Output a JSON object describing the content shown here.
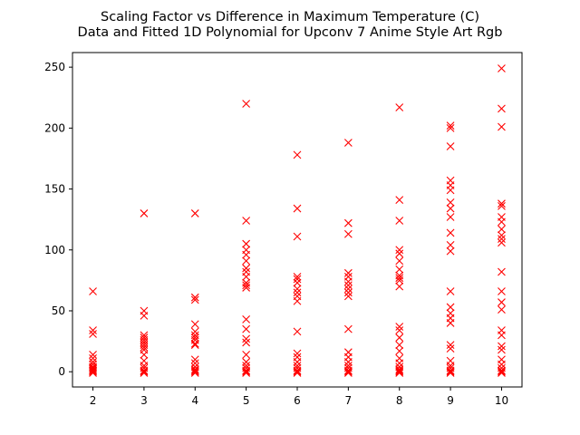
{
  "chart_data": {
    "type": "scatter",
    "title_line1": "Scaling Factor vs Difference in Maximum Temperature (C)",
    "title_line2": "Data and Fitted 1D Polynomial for Upconv 7 Anime Style Art Rgb",
    "xlabel": "",
    "ylabel": "",
    "xlim": [
      1.6,
      10.4
    ],
    "ylim": [
      -12.5,
      262
    ],
    "xticks": [
      2,
      3,
      4,
      5,
      6,
      7,
      8,
      9,
      10
    ],
    "yticks": [
      0,
      50,
      100,
      150,
      200,
      250
    ],
    "marker": "x",
    "marker_color": "#ff0000",
    "grid": false,
    "series": [
      {
        "points": [
          [
            2,
            66
          ],
          [
            2,
            34
          ],
          [
            2,
            31
          ],
          [
            2,
            14
          ],
          [
            2,
            11
          ],
          [
            2,
            8
          ],
          [
            2,
            6
          ],
          [
            2,
            4
          ],
          [
            2,
            3
          ],
          [
            2,
            2
          ],
          [
            2,
            1
          ],
          [
            2,
            0
          ],
          [
            2,
            -1
          ],
          [
            3,
            130
          ],
          [
            3,
            50
          ],
          [
            3,
            46
          ],
          [
            3,
            30
          ],
          [
            3,
            28
          ],
          [
            3,
            26
          ],
          [
            3,
            24
          ],
          [
            3,
            22
          ],
          [
            3,
            20
          ],
          [
            3,
            18
          ],
          [
            3,
            14
          ],
          [
            3,
            9
          ],
          [
            3,
            5
          ],
          [
            3,
            3
          ],
          [
            3,
            1
          ],
          [
            3,
            0
          ],
          [
            3,
            -1
          ],
          [
            4,
            130
          ],
          [
            4,
            61
          ],
          [
            4,
            59
          ],
          [
            4,
            39
          ],
          [
            4,
            33
          ],
          [
            4,
            30
          ],
          [
            4,
            28
          ],
          [
            4,
            26
          ],
          [
            4,
            23
          ],
          [
            4,
            22
          ],
          [
            4,
            10
          ],
          [
            4,
            7
          ],
          [
            4,
            4
          ],
          [
            4,
            2
          ],
          [
            4,
            1
          ],
          [
            4,
            0
          ],
          [
            4,
            -1
          ],
          [
            5,
            220
          ],
          [
            5,
            124
          ],
          [
            5,
            105
          ],
          [
            5,
            100
          ],
          [
            5,
            96
          ],
          [
            5,
            91
          ],
          [
            5,
            85
          ],
          [
            5,
            82
          ],
          [
            5,
            78
          ],
          [
            5,
            73
          ],
          [
            5,
            71
          ],
          [
            5,
            69
          ],
          [
            5,
            43
          ],
          [
            5,
            35
          ],
          [
            5,
            27
          ],
          [
            5,
            24
          ],
          [
            5,
            14
          ],
          [
            5,
            8
          ],
          [
            5,
            5
          ],
          [
            5,
            3
          ],
          [
            5,
            1
          ],
          [
            5,
            0
          ],
          [
            5,
            -1
          ],
          [
            6,
            178
          ],
          [
            6,
            134
          ],
          [
            6,
            111
          ],
          [
            6,
            78
          ],
          [
            6,
            76
          ],
          [
            6,
            73
          ],
          [
            6,
            68
          ],
          [
            6,
            65
          ],
          [
            6,
            62
          ],
          [
            6,
            58
          ],
          [
            6,
            33
          ],
          [
            6,
            15
          ],
          [
            6,
            12
          ],
          [
            6,
            8
          ],
          [
            6,
            5
          ],
          [
            6,
            3
          ],
          [
            6,
            1
          ],
          [
            6,
            0
          ],
          [
            6,
            -1
          ],
          [
            7,
            188
          ],
          [
            7,
            122
          ],
          [
            7,
            113
          ],
          [
            7,
            81
          ],
          [
            7,
            78
          ],
          [
            7,
            74
          ],
          [
            7,
            71
          ],
          [
            7,
            68
          ],
          [
            7,
            65
          ],
          [
            7,
            62
          ],
          [
            7,
            35
          ],
          [
            7,
            16
          ],
          [
            7,
            12
          ],
          [
            7,
            8
          ],
          [
            7,
            5
          ],
          [
            7,
            3
          ],
          [
            7,
            1
          ],
          [
            7,
            0
          ],
          [
            7,
            -1
          ],
          [
            8,
            217
          ],
          [
            8,
            141
          ],
          [
            8,
            124
          ],
          [
            8,
            100
          ],
          [
            8,
            97
          ],
          [
            8,
            91
          ],
          [
            8,
            84
          ],
          [
            8,
            79
          ],
          [
            8,
            77
          ],
          [
            8,
            75
          ],
          [
            8,
            70
          ],
          [
            8,
            37
          ],
          [
            8,
            34
          ],
          [
            8,
            28
          ],
          [
            8,
            22
          ],
          [
            8,
            17
          ],
          [
            8,
            11
          ],
          [
            8,
            7
          ],
          [
            8,
            4
          ],
          [
            8,
            2
          ],
          [
            8,
            1
          ],
          [
            8,
            0
          ],
          [
            8,
            -1
          ],
          [
            9,
            202
          ],
          [
            9,
            200
          ],
          [
            9,
            185
          ],
          [
            9,
            157
          ],
          [
            9,
            153
          ],
          [
            9,
            149
          ],
          [
            9,
            139
          ],
          [
            9,
            134
          ],
          [
            9,
            127
          ],
          [
            9,
            114
          ],
          [
            9,
            104
          ],
          [
            9,
            99
          ],
          [
            9,
            66
          ],
          [
            9,
            53
          ],
          [
            9,
            48
          ],
          [
            9,
            44
          ],
          [
            9,
            40
          ],
          [
            9,
            22
          ],
          [
            9,
            19
          ],
          [
            9,
            9
          ],
          [
            9,
            5
          ],
          [
            9,
            3
          ],
          [
            9,
            1
          ],
          [
            9,
            0
          ],
          [
            9,
            -1
          ],
          [
            10,
            249
          ],
          [
            10,
            216
          ],
          [
            10,
            201
          ],
          [
            10,
            138
          ],
          [
            10,
            136
          ],
          [
            10,
            127
          ],
          [
            10,
            123
          ],
          [
            10,
            117
          ],
          [
            10,
            112
          ],
          [
            10,
            109
          ],
          [
            10,
            106
          ],
          [
            10,
            82
          ],
          [
            10,
            66
          ],
          [
            10,
            57
          ],
          [
            10,
            51
          ],
          [
            10,
            34
          ],
          [
            10,
            30
          ],
          [
            10,
            21
          ],
          [
            10,
            18
          ],
          [
            10,
            10
          ],
          [
            10,
            6
          ],
          [
            10,
            3
          ],
          [
            10,
            1
          ],
          [
            10,
            0
          ],
          [
            10,
            -1
          ]
        ]
      }
    ]
  }
}
